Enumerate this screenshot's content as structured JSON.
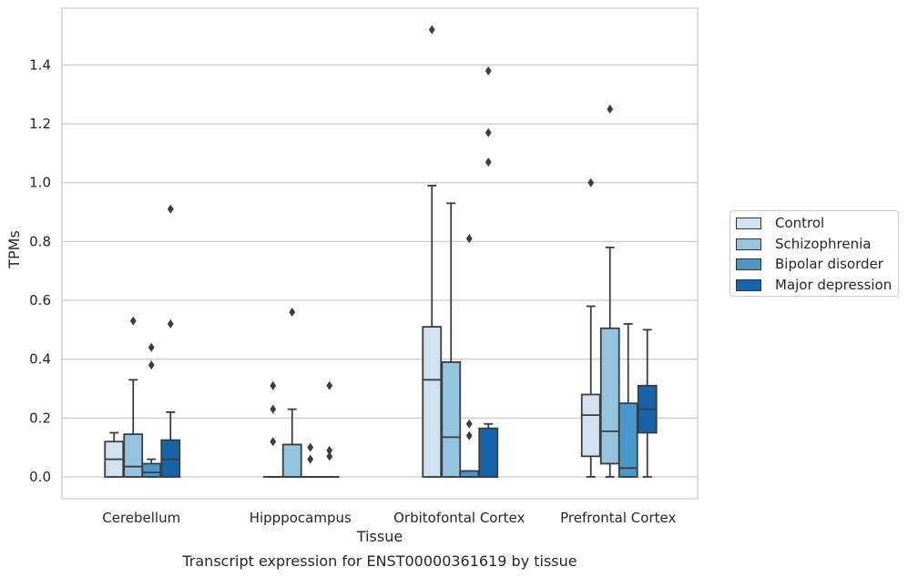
{
  "chart_data": {
    "type": "box",
    "title": "Transcript expression for ENST00000361619 by tissue",
    "xlabel": "Tissue",
    "ylabel": "TPMs",
    "ylim": [
      -0.075,
      1.57
    ],
    "yticks": [
      "0.0",
      "0.2",
      "0.4",
      "0.6",
      "0.8",
      "1.0",
      "1.2",
      "1.4"
    ],
    "categories": [
      "Cerebellum",
      "Hipppocampus",
      "Orbitofontal Cortex",
      "Prefrontal Cortex"
    ],
    "grid": "horizontal",
    "legend_position": "right",
    "series": [
      {
        "name": "Control",
        "color": "#d0e1f2",
        "boxes": [
          {
            "whislo": 0.0,
            "q1": 0.0,
            "med": 0.06,
            "q3": 0.12,
            "whishi": 0.15,
            "fliers": []
          },
          {
            "whislo": 0.0,
            "q1": 0.0,
            "med": 0.0,
            "q3": 0.0,
            "whishi": 0.0,
            "fliers": [
              0.12,
              0.23,
              0.31
            ]
          },
          {
            "whislo": 0.0,
            "q1": 0.0,
            "med": 0.33,
            "q3": 0.51,
            "whishi": 0.99,
            "fliers": [
              1.52
            ]
          },
          {
            "whislo": 0.0,
            "q1": 0.07,
            "med": 0.21,
            "q3": 0.28,
            "whishi": 0.58,
            "fliers": [
              1.0
            ]
          }
        ]
      },
      {
        "name": "Schizophrenia",
        "color": "#94c4df",
        "boxes": [
          {
            "whislo": 0.0,
            "q1": 0.0,
            "med": 0.035,
            "q3": 0.145,
            "whishi": 0.33,
            "fliers": [
              0.53
            ]
          },
          {
            "whislo": 0.0,
            "q1": 0.0,
            "med": 0.0,
            "q3": 0.11,
            "whishi": 0.23,
            "fliers": [
              0.56
            ]
          },
          {
            "whislo": 0.0,
            "q1": 0.0,
            "med": 0.135,
            "q3": 0.39,
            "whishi": 0.93,
            "fliers": []
          },
          {
            "whislo": 0.0,
            "q1": 0.045,
            "med": 0.155,
            "q3": 0.505,
            "whishi": 0.78,
            "fliers": [
              1.25
            ]
          }
        ]
      },
      {
        "name": "Bipolar disorder",
        "color": "#4a98c9",
        "boxes": [
          {
            "whislo": 0.0,
            "q1": 0.0,
            "med": 0.015,
            "q3": 0.045,
            "whishi": 0.06,
            "fliers": [
              0.38,
              0.44
            ]
          },
          {
            "whislo": 0.0,
            "q1": 0.0,
            "med": 0.0,
            "q3": 0.0,
            "whishi": 0.0,
            "fliers": [
              0.06,
              0.1
            ]
          },
          {
            "whislo": 0.0,
            "q1": 0.0,
            "med": 0.0,
            "q3": 0.02,
            "whishi": 0.02,
            "fliers": [
              0.14,
              0.18,
              0.81
            ]
          },
          {
            "whislo": 0.0,
            "q1": 0.0,
            "med": 0.03,
            "q3": 0.25,
            "whishi": 0.52,
            "fliers": []
          }
        ]
      },
      {
        "name": "Major depression",
        "color": "#1764ab",
        "boxes": [
          {
            "whislo": 0.0,
            "q1": 0.0,
            "med": 0.06,
            "q3": 0.125,
            "whishi": 0.22,
            "fliers": [
              0.52,
              0.91
            ]
          },
          {
            "whislo": 0.0,
            "q1": 0.0,
            "med": 0.0,
            "q3": 0.0,
            "whishi": 0.0,
            "fliers": [
              0.07,
              0.09,
              0.31
            ]
          },
          {
            "whislo": 0.0,
            "q1": 0.0,
            "med": 0.0,
            "q3": 0.165,
            "whishi": 0.18,
            "fliers": [
              1.07,
              1.17,
              1.38
            ]
          },
          {
            "whislo": 0.0,
            "q1": 0.15,
            "med": 0.23,
            "q3": 0.31,
            "whishi": 0.5,
            "fliers": []
          }
        ]
      }
    ]
  }
}
